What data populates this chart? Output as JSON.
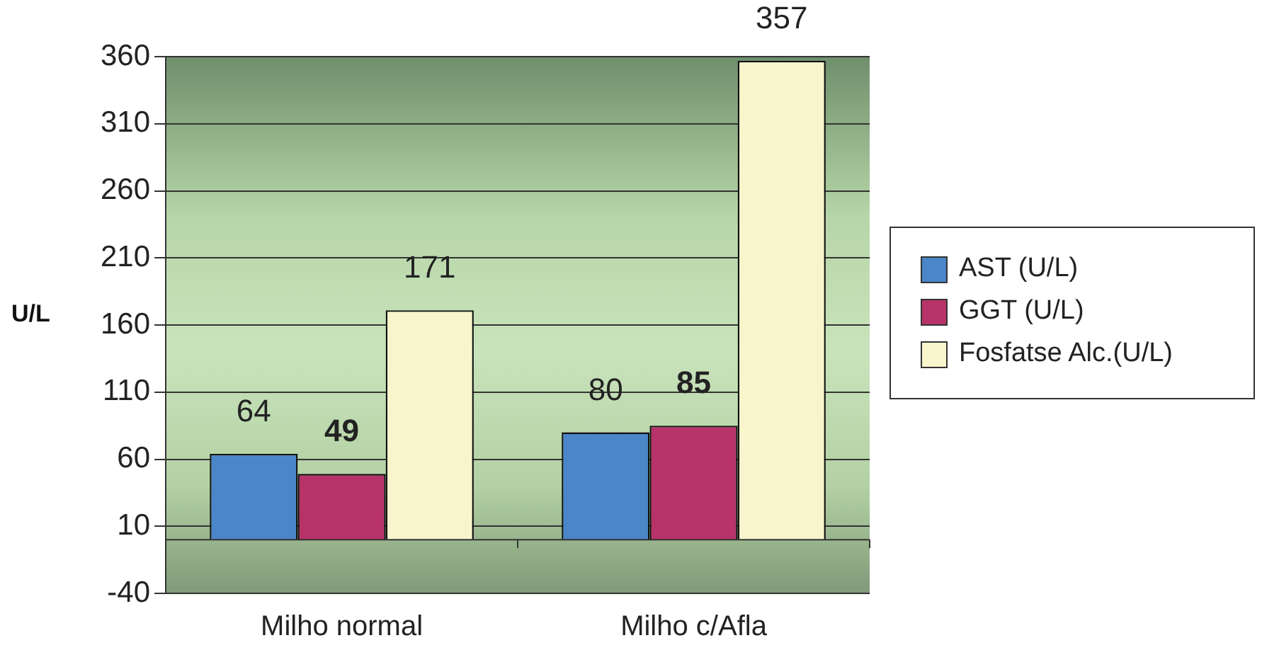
{
  "chart_data": {
    "type": "bar",
    "ylabel": "U/L",
    "categories": [
      "Milho normal",
      "Milho c/Afla"
    ],
    "series": [
      {
        "name": "AST (U/L)",
        "color": "#4a86c8",
        "values": [
          64,
          80
        ]
      },
      {
        "name": "GGT (U/L)",
        "color": "#b8336a",
        "values": [
          49,
          85
        ]
      },
      {
        "name": "Fosfatse Alc.(U/L)",
        "color": "#f8f4cc",
        "values": [
          171,
          357
        ]
      }
    ],
    "ylim": [
      -40,
      360
    ],
    "yticks": [
      -40,
      10,
      60,
      110,
      160,
      210,
      260,
      310,
      360
    ],
    "grid": "y",
    "legend": "right",
    "data_labels": true
  }
}
